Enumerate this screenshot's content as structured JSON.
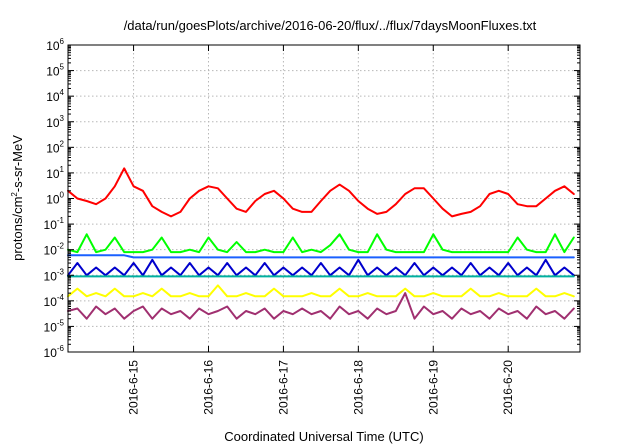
{
  "chart_data": {
    "type": "line",
    "title": "/data/run/goesPlots/archive/2016-06-20/flux/../flux/7daysMoonFluxes.txt",
    "xlabel": "Coordinated Universal Time (UTC)",
    "ylabel": {
      "prefix": "protons/cm",
      "sup": "2",
      "suffix": "-s-sr-MeV"
    },
    "x_scale": "time",
    "x_range": [
      "2016-06-14 03:00",
      "2016-06-20 23:00"
    ],
    "x_ticks": [
      "2016-6-15",
      "2016-6-16",
      "2016-6-17",
      "2016-6-18",
      "2016-6-19",
      "2016-6-20"
    ],
    "y_scale": "log",
    "ylim_exp": [
      -6,
      6
    ],
    "y_ticks": [
      {
        "base": "10",
        "exp": "-6"
      },
      {
        "base": "10",
        "exp": "-5"
      },
      {
        "base": "10",
        "exp": "-4"
      },
      {
        "base": "10",
        "exp": "-3"
      },
      {
        "base": "10",
        "exp": "-2"
      },
      {
        "base": "10",
        "exp": "-1"
      },
      {
        "base": "10",
        "exp": "0"
      },
      {
        "base": "10",
        "exp": "1"
      },
      {
        "base": "10",
        "exp": "2"
      },
      {
        "base": "10",
        "exp": "3"
      },
      {
        "base": "10",
        "exp": "4"
      },
      {
        "base": "10",
        "exp": "5"
      },
      {
        "base": "10",
        "exp": "6"
      }
    ],
    "grid": true,
    "legend": false,
    "x": [
      "2016-06-14 03:00",
      "2016-06-14 06:00",
      "2016-06-14 09:00",
      "2016-06-14 12:00",
      "2016-06-14 15:00",
      "2016-06-14 18:00",
      "2016-06-14 21:00",
      "2016-06-15 00:00",
      "2016-06-15 03:00",
      "2016-06-15 06:00",
      "2016-06-15 09:00",
      "2016-06-15 12:00",
      "2016-06-15 15:00",
      "2016-06-15 18:00",
      "2016-06-15 21:00",
      "2016-06-16 00:00",
      "2016-06-16 03:00",
      "2016-06-16 06:00",
      "2016-06-16 09:00",
      "2016-06-16 12:00",
      "2016-06-16 15:00",
      "2016-06-16 18:00",
      "2016-06-16 21:00",
      "2016-06-17 00:00",
      "2016-06-17 03:00",
      "2016-06-17 06:00",
      "2016-06-17 09:00",
      "2016-06-17 12:00",
      "2016-06-17 15:00",
      "2016-06-17 18:00",
      "2016-06-17 21:00",
      "2016-06-18 00:00",
      "2016-06-18 03:00",
      "2016-06-18 06:00",
      "2016-06-18 09:00",
      "2016-06-18 12:00",
      "2016-06-18 15:00",
      "2016-06-18 18:00",
      "2016-06-18 21:00",
      "2016-06-19 00:00",
      "2016-06-19 03:00",
      "2016-06-19 06:00",
      "2016-06-19 09:00",
      "2016-06-19 12:00",
      "2016-06-19 15:00",
      "2016-06-19 18:00",
      "2016-06-19 21:00",
      "2016-06-20 00:00",
      "2016-06-20 03:00",
      "2016-06-20 06:00",
      "2016-06-20 09:00",
      "2016-06-20 12:00",
      "2016-06-20 15:00",
      "2016-06-20 18:00",
      "2016-06-20 21:00"
    ],
    "series": [
      {
        "color": "#ff0000",
        "values": [
          2.0,
          1.0,
          0.8,
          0.6,
          1.0,
          3.0,
          15.0,
          3.0,
          2.0,
          0.5,
          0.3,
          0.2,
          0.3,
          1.0,
          2.0,
          3.0,
          2.5,
          1.0,
          0.4,
          0.3,
          0.8,
          1.5,
          2.0,
          1.0,
          0.4,
          0.3,
          0.3,
          0.8,
          2.0,
          3.5,
          2.0,
          0.8,
          0.4,
          0.25,
          0.3,
          0.6,
          1.5,
          2.5,
          2.5,
          1.0,
          0.4,
          0.2,
          0.25,
          0.3,
          0.5,
          1.5,
          2.0,
          1.5,
          0.6,
          0.5,
          0.5,
          1.0,
          2.0,
          3.0,
          1.5
        ]
      },
      {
        "color": "#00ff00",
        "values": [
          0.01,
          0.008,
          0.04,
          0.008,
          0.01,
          0.03,
          0.008,
          0.008,
          0.008,
          0.01,
          0.03,
          0.008,
          0.008,
          0.01,
          0.008,
          0.03,
          0.01,
          0.008,
          0.02,
          0.008,
          0.008,
          0.01,
          0.008,
          0.008,
          0.03,
          0.008,
          0.01,
          0.008,
          0.015,
          0.04,
          0.01,
          0.008,
          0.008,
          0.04,
          0.01,
          0.008,
          0.008,
          0.008,
          0.008,
          0.04,
          0.01,
          0.008,
          0.008,
          0.008,
          0.008,
          0.008,
          0.008,
          0.008,
          0.03,
          0.01,
          0.008,
          0.008,
          0.04,
          0.008,
          0.03
        ]
      },
      {
        "color": "#1a60ff",
        "values": [
          0.006,
          0.006,
          0.006,
          0.006,
          0.006,
          0.006,
          0.006,
          0.005,
          0.005,
          0.005,
          0.005,
          0.005,
          0.005,
          0.005,
          0.005,
          0.005,
          0.005,
          0.005,
          0.005,
          0.005,
          0.005,
          0.005,
          0.005,
          0.005,
          0.005,
          0.005,
          0.005,
          0.005,
          0.005,
          0.005,
          0.005,
          0.005,
          0.005,
          0.005,
          0.005,
          0.005,
          0.005,
          0.005,
          0.005,
          0.005,
          0.005,
          0.005,
          0.005,
          0.005,
          0.005,
          0.005,
          0.005,
          0.005,
          0.005,
          0.005,
          0.005,
          0.005,
          0.005,
          0.005,
          0.005
        ]
      },
      {
        "color": "#0000cc",
        "values": [
          0.001,
          0.003,
          0.001,
          0.002,
          0.001,
          0.002,
          0.001,
          0.003,
          0.001,
          0.004,
          0.001,
          0.002,
          0.001,
          0.003,
          0.001,
          0.002,
          0.001,
          0.003,
          0.001,
          0.002,
          0.001,
          0.003,
          0.001,
          0.002,
          0.001,
          0.002,
          0.001,
          0.003,
          0.001,
          0.002,
          0.001,
          0.004,
          0.001,
          0.002,
          0.001,
          0.002,
          0.001,
          0.003,
          0.001,
          0.002,
          0.001,
          0.002,
          0.001,
          0.003,
          0.001,
          0.002,
          0.001,
          0.003,
          0.001,
          0.002,
          0.001,
          0.004,
          0.001,
          0.002,
          0.001
        ]
      },
      {
        "color": "#00b0a0",
        "values": [
          0.0009,
          0.0009,
          0.0009,
          0.0009,
          0.0009,
          0.0009,
          0.0009,
          0.0009,
          0.0009,
          0.0009,
          0.0009,
          0.0009,
          0.0009,
          0.0009,
          0.0009,
          0.0009,
          0.0009,
          0.0009,
          0.0009,
          0.0009,
          0.0009,
          0.0009,
          0.0009,
          0.0009,
          0.0009,
          0.0009,
          0.0009,
          0.0009,
          0.0009,
          0.0009,
          0.0009,
          0.0009,
          0.0009,
          0.0009,
          0.0009,
          0.0009,
          0.0009,
          0.0009,
          0.0009,
          0.0009,
          0.0009,
          0.0009,
          0.0009,
          0.0009,
          0.0009,
          0.0009,
          0.0009,
          0.0009,
          0.0009,
          0.0009,
          0.0009,
          0.0009,
          0.0009,
          0.0009,
          0.0009
        ]
      },
      {
        "color": "#ffff00",
        "values": [
          0.00015,
          0.0003,
          0.00015,
          0.0002,
          0.00015,
          0.0003,
          0.00015,
          0.00015,
          0.0002,
          0.00015,
          0.0003,
          0.00015,
          0.00015,
          0.0002,
          0.00015,
          0.00015,
          0.0004,
          0.00015,
          0.00015,
          0.0002,
          0.00015,
          0.00015,
          0.0003,
          0.00015,
          0.00015,
          0.00015,
          0.0002,
          0.00015,
          0.00015,
          0.0003,
          0.00015,
          0.00015,
          0.0002,
          0.00015,
          0.00015,
          0.00015,
          0.0003,
          0.00015,
          0.00015,
          0.0002,
          0.00015,
          0.00015,
          0.00015,
          0.0003,
          0.00015,
          0.00015,
          0.0002,
          0.00015,
          0.00015,
          0.00015,
          0.0003,
          0.00015,
          0.00015,
          0.0002,
          0.00015
        ]
      },
      {
        "color": "#a03070",
        "values": [
          4e-05,
          5e-05,
          2e-05,
          6e-05,
          3e-05,
          5e-05,
          2e-05,
          4e-05,
          6e-05,
          2e-05,
          5e-05,
          3e-05,
          4e-05,
          2e-05,
          5e-05,
          3e-05,
          4e-05,
          6e-05,
          2e-05,
          4e-05,
          3e-05,
          5e-05,
          2e-05,
          4e-05,
          3e-05,
          5e-05,
          3e-05,
          4e-05,
          2e-05,
          6e-05,
          3e-05,
          4e-05,
          2e-05,
          5e-05,
          3e-05,
          4e-05,
          0.0002,
          2e-05,
          6e-05,
          3e-05,
          4e-05,
          2e-05,
          5e-05,
          3e-05,
          4e-05,
          2e-05,
          5e-05,
          3e-05,
          4e-05,
          2e-05,
          6e-05,
          3e-05,
          4e-05,
          2e-05,
          5e-05
        ]
      }
    ]
  }
}
